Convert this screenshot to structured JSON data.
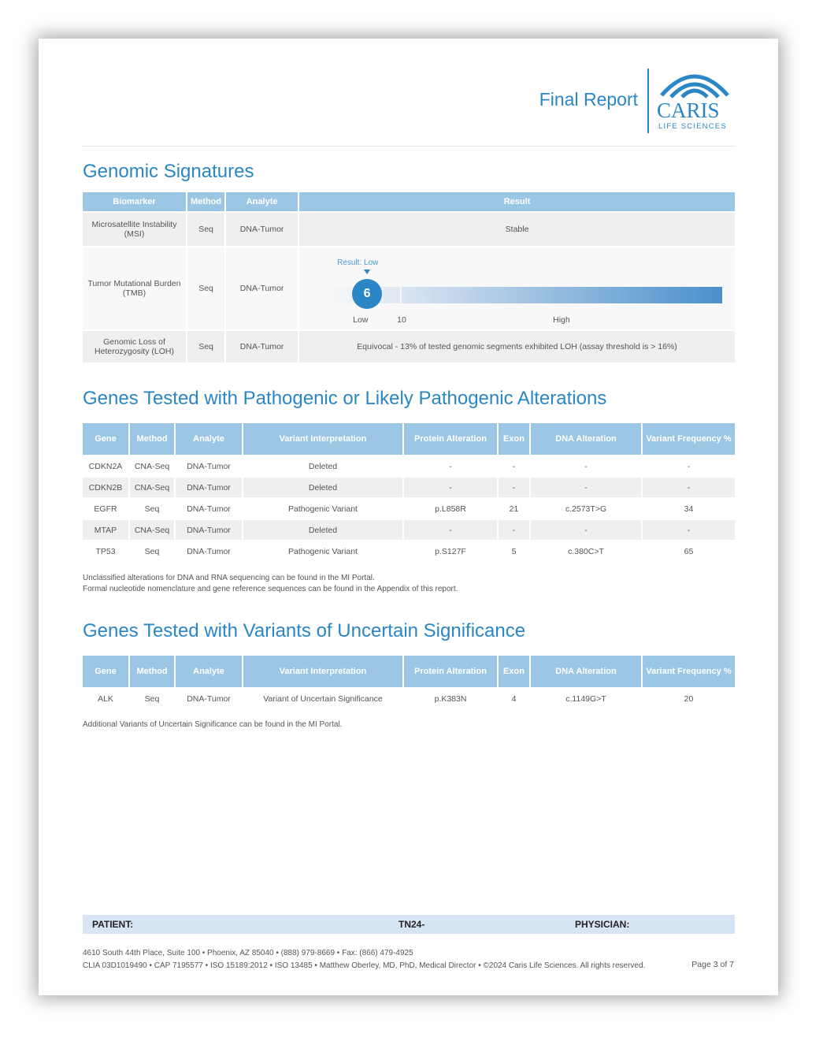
{
  "header": {
    "title": "Final Report",
    "logo_text": "CARIS",
    "logo_sub": "LIFE SCIENCES"
  },
  "genomic": {
    "title": "Genomic Signatures",
    "columns": [
      "Biomarker",
      "Method",
      "Analyte",
      "Result"
    ],
    "rows": [
      {
        "biomarker": "Microsatellite Instability (MSI)",
        "method": "Seq",
        "analyte": "DNA-Tumor",
        "result": "Stable"
      },
      {
        "biomarker": "Tumor Mutational Burden (TMB)",
        "method": "Seq",
        "analyte": "DNA-Tumor"
      },
      {
        "biomarker": "Genomic Loss of Heterozygosity (LOH)",
        "method": "Seq",
        "analyte": "DNA-Tumor",
        "result": "Equivocal - 13% of tested genomic segments exhibited LOH (assay threshold is > 16%)"
      }
    ],
    "tmb": {
      "result_label": "Result: Low",
      "value": "6",
      "threshold": "10",
      "low_label": "Low",
      "high_label": "High",
      "color": "#2a86c4"
    }
  },
  "pathogenic": {
    "title": "Genes Tested with Pathogenic or Likely Pathogenic Alterations",
    "columns": [
      "Gene",
      "Method",
      "Analyte",
      "Variant Interpretation",
      "Protein Alteration",
      "Exon",
      "DNA Alteration",
      "Variant Frequency %"
    ],
    "rows": [
      [
        "CDKN2A",
        "CNA-Seq",
        "DNA-Tumor",
        "Deleted",
        "-",
        "-",
        "-",
        "-"
      ],
      [
        "CDKN2B",
        "CNA-Seq",
        "DNA-Tumor",
        "Deleted",
        "-",
        "-",
        "-",
        "-"
      ],
      [
        "EGFR",
        "Seq",
        "DNA-Tumor",
        "Pathogenic Variant",
        "p.L858R",
        "21",
        "c.2573T>G",
        "34"
      ],
      [
        "MTAP",
        "CNA-Seq",
        "DNA-Tumor",
        "Deleted",
        "-",
        "-",
        "-",
        "-"
      ],
      [
        "TP53",
        "Seq",
        "DNA-Tumor",
        "Pathogenic Variant",
        "p.S127F",
        "5",
        "c.380C>T",
        "65"
      ]
    ],
    "notes": [
      "Unclassified alterations for DNA and RNA sequencing can be found in the MI Portal.",
      "Formal nucleotide nomenclature and gene reference sequences can be found in the Appendix of this report."
    ]
  },
  "vus": {
    "title": "Genes Tested with Variants of Uncertain Significance",
    "columns": [
      "Gene",
      "Method",
      "Analyte",
      "Variant Interpretation",
      "Protein Alteration",
      "Exon",
      "DNA Alteration",
      "Variant Frequency %"
    ],
    "rows": [
      [
        "ALK",
        "Seq",
        "DNA-Tumor",
        "Variant of Uncertain Significance",
        "p.K383N",
        "4",
        "c.1149G>T",
        "20"
      ]
    ],
    "note": "Additional Variants of Uncertain Significance can be found in the MI Portal."
  },
  "footer": {
    "patient": "PATIENT:",
    "id": "TN24-",
    "physician": "PHYSICIAN:",
    "address": "4610 South 44th Place, Suite 100 • Phoenix, AZ 85040 • (888) 979-8669 • Fax: (866) 479-4925",
    "legal": "CLIA 03D1019490 • CAP 7195577 • ISO 15189:2012 • ISO 13485 • Matthew Oberley, MD, PhD, Medical Director • ©2024 Caris Life Sciences. All rights reserved.",
    "page": "Page 3 of 7"
  }
}
